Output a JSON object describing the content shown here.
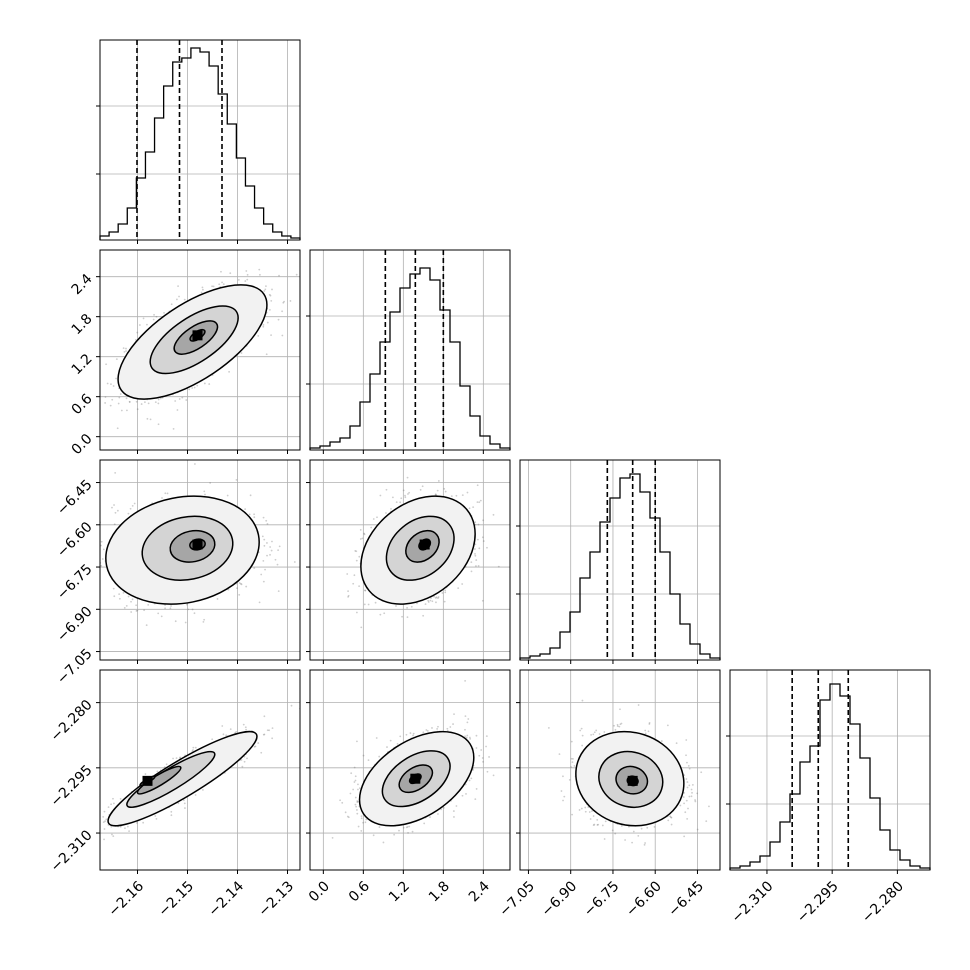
{
  "chart_data": {
    "type": "corner",
    "grid": true,
    "colors": {
      "line": "#000000",
      "grid": "#b0b0b0",
      "background": "#ffffff",
      "scatter": "#707070"
    },
    "params": [
      {
        "range": [
          -2.1675,
          -2.1275
        ],
        "ticks": [
          "-2.16",
          "-2.15",
          "-2.14",
          "-2.13"
        ],
        "tick_values": [
          -2.16,
          -2.15,
          -2.14,
          -2.13
        ],
        "hist": [
          0.02,
          0.04,
          0.08,
          0.16,
          0.31,
          0.44,
          0.61,
          0.77,
          0.89,
          0.91,
          0.96,
          0.94,
          0.87,
          0.73,
          0.58,
          0.41,
          0.27,
          0.16,
          0.08,
          0.04,
          0.02,
          0.01
        ],
        "quantiles": [
          -2.1601,
          -2.1516,
          -2.1431
        ]
      },
      {
        "range": [
          -0.2,
          2.8
        ],
        "ticks": [
          "0.0",
          "0.6",
          "1.2",
          "1.8",
          "2.4"
        ],
        "tick_values": [
          0.0,
          0.6,
          1.2,
          1.8,
          2.4
        ],
        "hist": [
          0.01,
          0.02,
          0.04,
          0.06,
          0.12,
          0.24,
          0.38,
          0.54,
          0.69,
          0.81,
          0.88,
          0.91,
          0.85,
          0.7,
          0.54,
          0.32,
          0.17,
          0.07,
          0.03,
          0.01
        ],
        "quantiles": [
          0.93,
          1.38,
          1.8
        ]
      },
      {
        "range": [
          -7.08,
          -6.37
        ],
        "ticks": [
          "-7.05",
          "-6.90",
          "-6.75",
          "-6.60",
          "-6.45"
        ],
        "tick_values": [
          -7.05,
          -6.9,
          -6.75,
          -6.6,
          -6.45
        ],
        "hist": [
          0.01,
          0.02,
          0.03,
          0.06,
          0.14,
          0.24,
          0.41,
          0.54,
          0.69,
          0.81,
          0.91,
          0.93,
          0.84,
          0.71,
          0.54,
          0.33,
          0.18,
          0.08,
          0.03,
          0.01
        ],
        "quantiles": [
          -6.77,
          -6.68,
          -6.6
        ]
      },
      {
        "range": [
          -2.3185,
          -2.2725
        ],
        "ticks": [
          "-2.310",
          "-2.295",
          "-2.280"
        ],
        "tick_values": [
          -2.31,
          -2.295,
          -2.28
        ],
        "hist": [
          0.01,
          0.02,
          0.04,
          0.07,
          0.14,
          0.24,
          0.38,
          0.54,
          0.62,
          0.85,
          0.93,
          0.87,
          0.73,
          0.56,
          0.36,
          0.2,
          0.1,
          0.05,
          0.02,
          0.01
        ],
        "quantiles": [
          -2.3042,
          -2.2982,
          -2.2913
        ]
      }
    ],
    "pairs": [
      {
        "x": 0,
        "y": 1,
        "center": [
          -2.149,
          1.42
        ],
        "sd": [
          0.0066,
          0.38
        ],
        "corr": 0.65,
        "peak": [
          -2.148,
          1.52
        ]
      },
      {
        "x": 0,
        "y": 2,
        "center": [
          -2.151,
          -6.69
        ],
        "sd": [
          0.0068,
          0.085
        ],
        "corr": 0.15,
        "peak": [
          -2.148,
          -6.67
        ]
      },
      {
        "x": 1,
        "y": 2,
        "center": [
          1.42,
          -6.69
        ],
        "sd": [
          0.38,
          0.085
        ],
        "corr": 0.3,
        "peak": [
          1.52,
          -6.67
        ]
      },
      {
        "x": 0,
        "y": 3,
        "center": [
          -2.151,
          -2.2975
        ],
        "sd": [
          0.0066,
          0.0048
        ],
        "corr": 0.9,
        "peak": [
          -2.158,
          -2.298
        ]
      },
      {
        "x": 1,
        "y": 3,
        "center": [
          1.4,
          -2.2975
        ],
        "sd": [
          0.38,
          0.0048
        ],
        "corr": 0.45,
        "peak": [
          1.38,
          -2.2975
        ]
      },
      {
        "x": 2,
        "y": 3,
        "center": [
          -6.69,
          -2.2975
        ],
        "sd": [
          0.085,
          0.0048
        ],
        "corr": -0.1,
        "peak": [
          -6.68,
          -2.298
        ]
      }
    ]
  }
}
